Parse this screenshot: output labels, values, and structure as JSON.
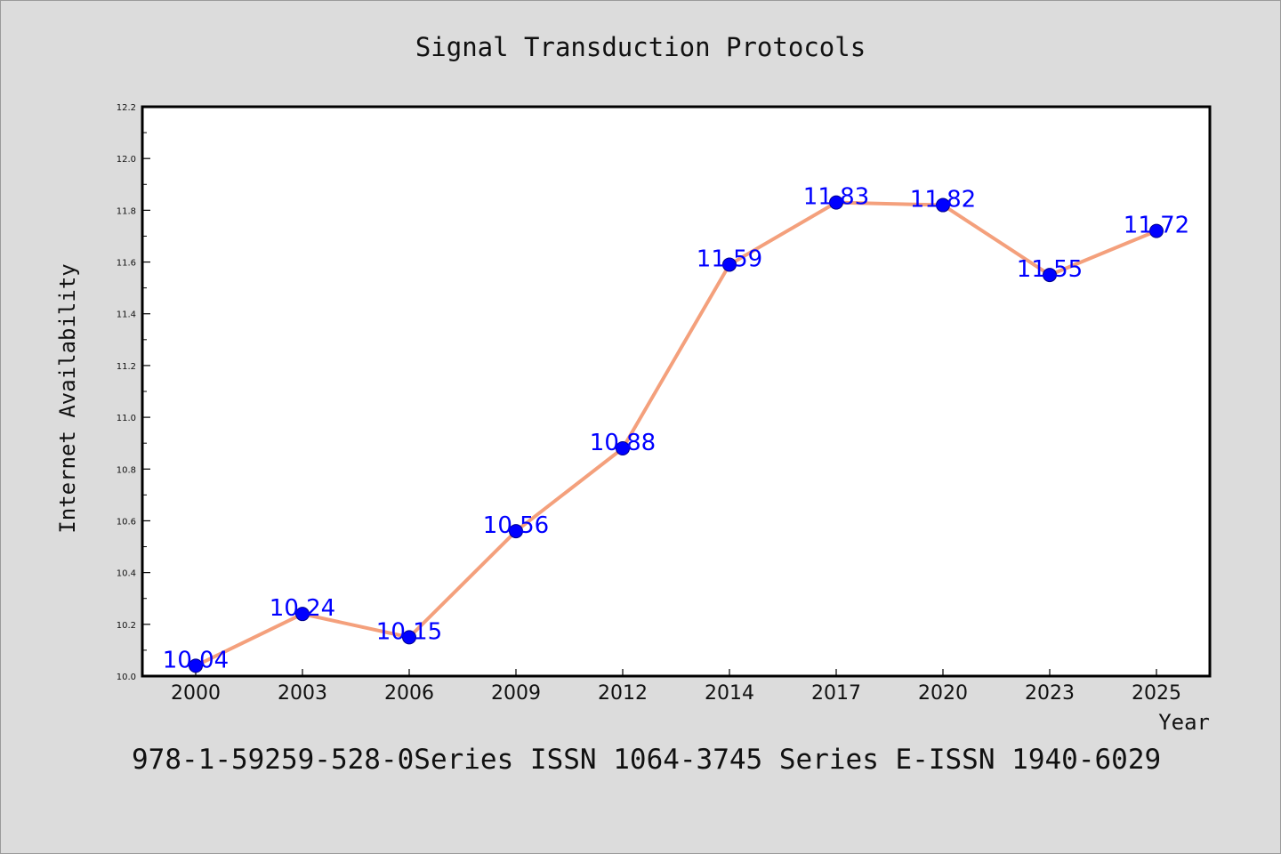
{
  "chart_data": {
    "type": "line",
    "title": "Signal Transduction Protocols",
    "xlabel": "Year",
    "ylabel": "Internet Availability",
    "categories": [
      "2000",
      "2003",
      "2006",
      "2009",
      "2012",
      "2014",
      "2017",
      "2020",
      "2023",
      "2025"
    ],
    "series": [
      {
        "values": [
          10.04,
          10.24,
          10.15,
          10.56,
          10.88,
          11.59,
          11.83,
          11.82,
          11.55,
          11.72
        ],
        "labels": [
          "10.04",
          "10.24",
          "10.15",
          "10.56",
          "10.88",
          "11.59",
          "11.83",
          "11.82",
          "11.55",
          "11.72"
        ],
        "line_color": "#f4a07c",
        "marker_color": "#0000ff"
      }
    ],
    "ylim": [
      10.0,
      12.2
    ],
    "yticks": [
      "10.0",
      "10.2",
      "10.4",
      "10.6",
      "10.8",
      "11.0",
      "11.2",
      "11.4",
      "11.6",
      "11.8",
      "12.0",
      "12.2"
    ],
    "grid": false,
    "legend": "none"
  },
  "footer": {
    "text": "978-1-59259-528-0Series ISSN 1064-3745 Series E-ISSN 1940-6029"
  },
  "colors": {
    "background": "#dcdcdc",
    "plot_background": "#ffffff",
    "axis": "#000000"
  }
}
